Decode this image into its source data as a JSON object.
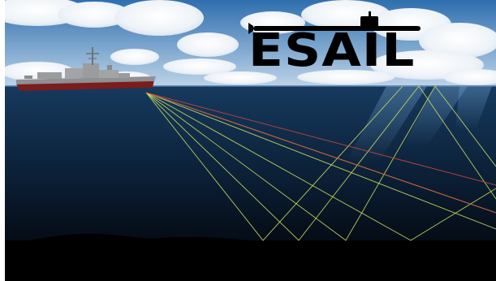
{
  "logo": {
    "text": "ESAIL",
    "color": "#000000"
  },
  "scene": {
    "sky_top": "#2f6fae",
    "sky_bottom": "#bcd3e8",
    "water_top": "#163a5e",
    "water_bottom": "#050c16",
    "seabed": "#000000",
    "hull": "#7a1d1d",
    "superstructure": "#9a9c9e"
  },
  "rays": {
    "green": "#cfe05a",
    "red": "#d24a3a"
  }
}
